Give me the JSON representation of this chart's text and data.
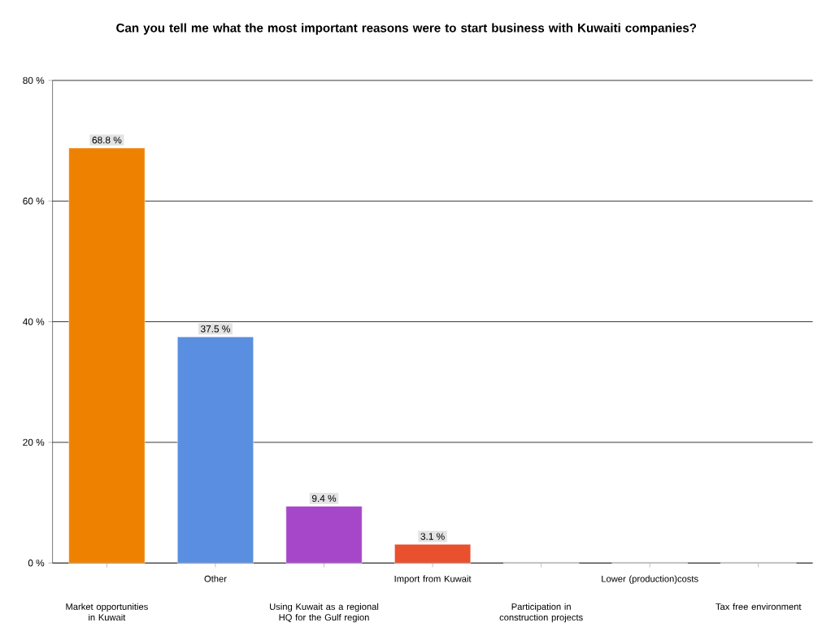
{
  "chart_data": {
    "type": "bar",
    "title": "Can you tell me what the most important reasons were to start business with Kuwaiti companies?",
    "categories": [
      "Market opportunities in Kuwait",
      "Other",
      "Using Kuwait as a regional HQ for the Gulf region",
      "Import from Kuwait",
      "Participation in construction projects",
      "Lower (production)costs",
      "Tax free environment"
    ],
    "values": [
      68.8,
      37.5,
      9.4,
      3.1,
      0,
      0,
      0
    ],
    "value_labels": [
      "68.8 %",
      "37.5 %",
      "9.4 %",
      "3.1 %",
      null,
      null,
      null
    ],
    "colors": [
      "#ee8200",
      "#5a8ee0",
      "#a646c8",
      "#e8502e",
      "#3aa655",
      "#e8b020",
      "#20a0b0"
    ],
    "ylim": [
      0,
      80
    ],
    "yticks": [
      {
        "value": 0,
        "label": "0 %"
      },
      {
        "value": 20,
        "label": "20 %"
      },
      {
        "value": 40,
        "label": "40 %"
      },
      {
        "value": 60,
        "label": "60 %"
      },
      {
        "value": 80,
        "label": "80 %"
      }
    ],
    "grid": "y"
  }
}
